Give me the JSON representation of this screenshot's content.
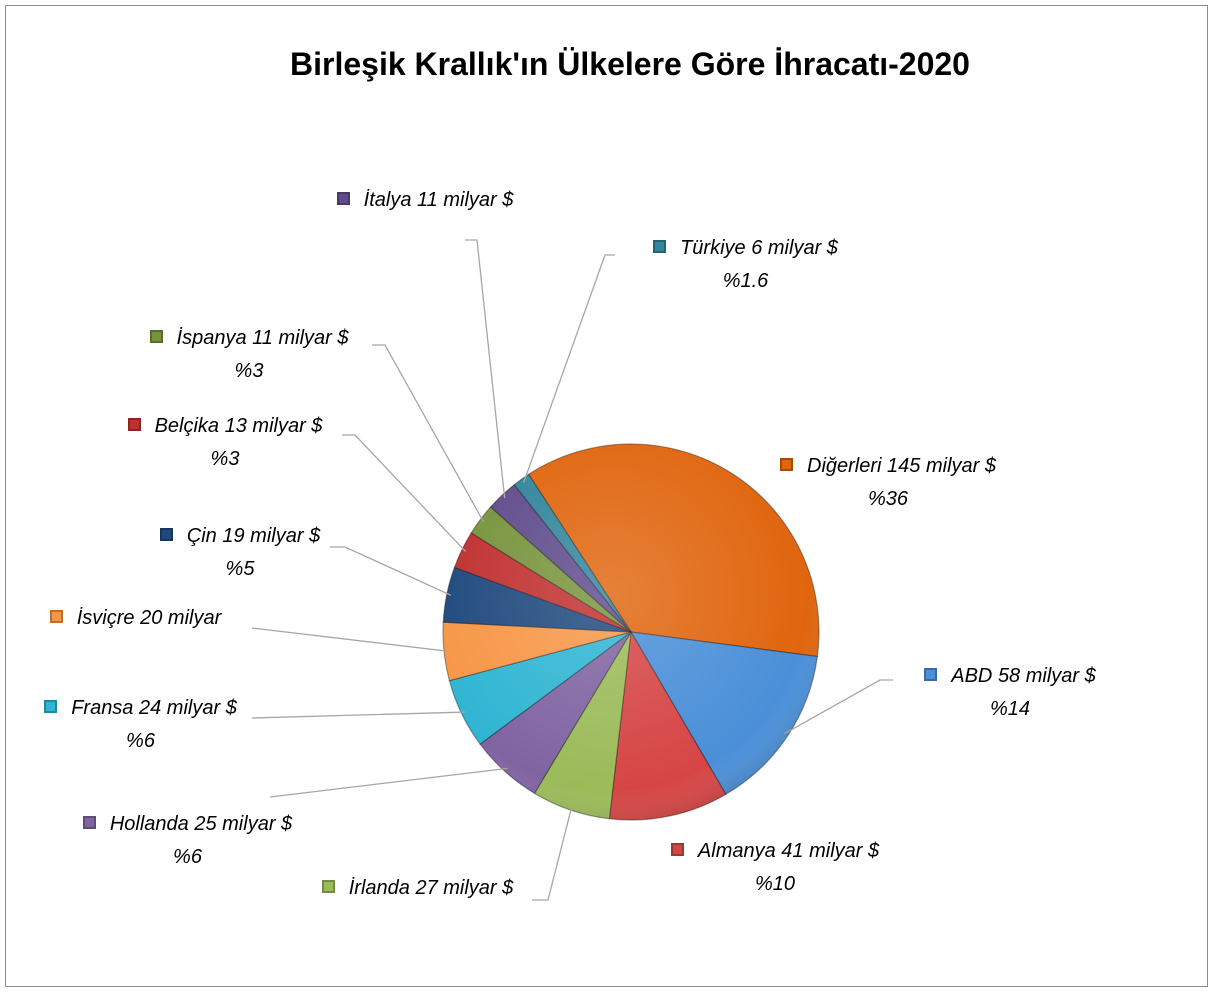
{
  "chart_data": {
    "type": "pie",
    "title": "Birleşik Krallık'ın Ülkelere Göre İhracatı-2020",
    "categories": [
      "Diğerleri",
      "ABD",
      "Almanya",
      "İrlanda",
      "Hollanda",
      "Fransa",
      "İsviçre",
      "Çin",
      "Belçika",
      "İspanya",
      "İtalya",
      "Türkiye"
    ],
    "values": [
      145,
      58,
      41,
      27,
      25,
      24,
      20,
      19,
      13,
      11,
      11,
      6
    ],
    "value_labels": [
      "145 milyar $",
      "58 milyar $",
      "41 milyar $",
      "27 milyar $",
      "25 milyar $",
      "24 milyar $",
      "20 milyar",
      "19 milyar $",
      "13 milyar $",
      "11 milyar $",
      "11 milyar $",
      "6 milyar $"
    ],
    "percent_labels": [
      "%36",
      "%14",
      "%10",
      null,
      "%6",
      "%6",
      null,
      "%5",
      "%3",
      "%3",
      null,
      "%1.6"
    ],
    "colors": [
      "#e0650e",
      "#4a8fd8",
      "#d64545",
      "#9bbb59",
      "#8064a2",
      "#2fb5d3",
      "#f79646",
      "#1f497d",
      "#c0302f",
      "#77933c",
      "#5f4b8b",
      "#31859c"
    ]
  }
}
